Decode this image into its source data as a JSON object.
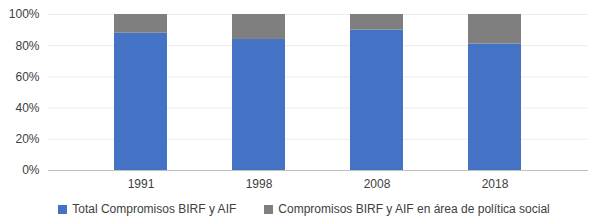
{
  "chart_data": {
    "type": "bar",
    "stacked": true,
    "categories": [
      "1991",
      "1998",
      "2008",
      "2018"
    ],
    "series": [
      {
        "name": "Total Compromisos BIRF y AIF",
        "color": "#4472c4",
        "values": [
          88,
          84,
          90,
          81
        ]
      },
      {
        "name": "Compromisos BIRF y AIF en área de política social",
        "color": "#7f7f7f",
        "values": [
          12,
          16,
          10,
          19
        ]
      }
    ],
    "ylim": [
      0,
      100
    ],
    "yticks": [
      {
        "value": 0,
        "label": "0%"
      },
      {
        "value": 20,
        "label": "20%"
      },
      {
        "value": 40,
        "label": "40%"
      },
      {
        "value": 60,
        "label": "60%"
      },
      {
        "value": 80,
        "label": "80%"
      },
      {
        "value": 100,
        "label": "100%"
      }
    ],
    "grid": true,
    "legend": "bottom"
  }
}
